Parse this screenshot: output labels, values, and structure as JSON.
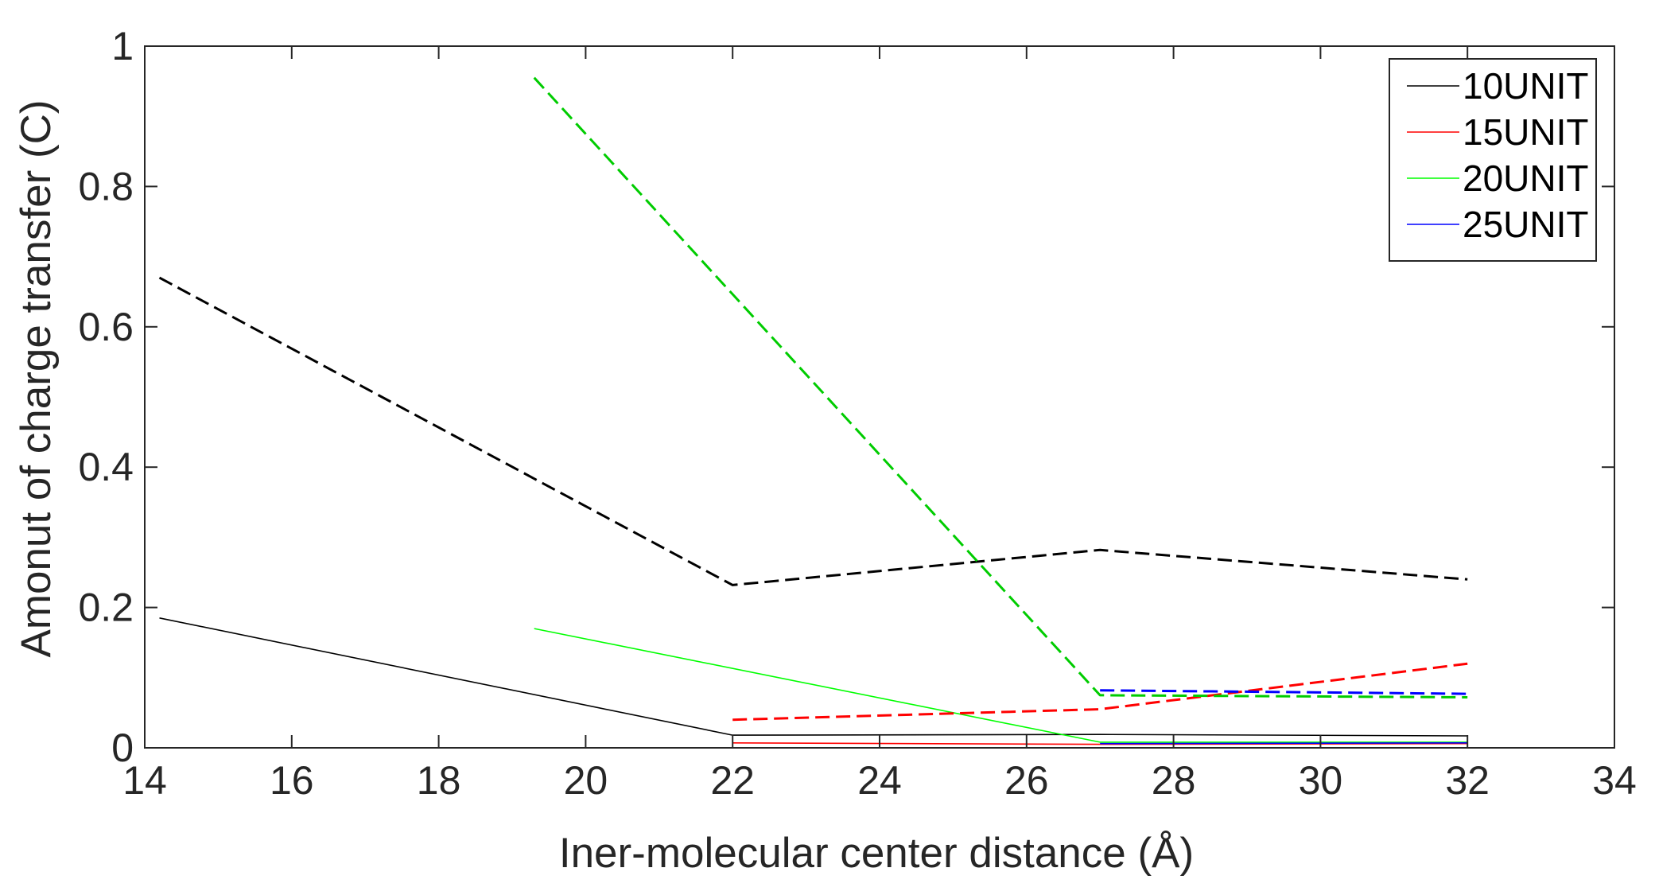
{
  "chart_data": {
    "type": "line",
    "title": "",
    "xlabel": "Iner-molecular center distance (Å)",
    "ylabel": "Amonut of charge transfer (C)",
    "xlim": [
      14,
      34
    ],
    "ylim": [
      0,
      1
    ],
    "xticks": [
      "14",
      "16",
      "18",
      "20",
      "22",
      "24",
      "26",
      "28",
      "30",
      "32",
      "34"
    ],
    "yticks": [
      "0",
      "0.2",
      "0.4",
      "0.6",
      "0.8",
      "1"
    ],
    "grid": false,
    "legend_position": "top-right",
    "series": [
      {
        "name": "10UNIT",
        "color": "#000000",
        "style": "solid",
        "x": [
          14.2,
          22,
          27,
          32
        ],
        "y": [
          0.185,
          0.018,
          0.019,
          0.017
        ]
      },
      {
        "name": "15UNIT",
        "color": "#ff0000",
        "style": "solid",
        "x": [
          22,
          27,
          32
        ],
        "y": [
          0.007,
          0.005,
          0.006
        ]
      },
      {
        "name": "20UNIT",
        "color": "#00ff00",
        "style": "solid",
        "x": [
          19.3,
          27,
          32
        ],
        "y": [
          0.17,
          0.008,
          0.008
        ]
      },
      {
        "name": "25UNIT",
        "color": "#0000ff",
        "style": "solid",
        "x": [
          27,
          32
        ],
        "y": [
          0.006,
          0.007
        ]
      },
      {
        "name": "",
        "color": "#000000",
        "style": "dashed",
        "x": [
          14.2,
          22,
          27,
          32
        ],
        "y": [
          0.67,
          0.232,
          0.282,
          0.24
        ]
      },
      {
        "name": "",
        "color": "#ff0000",
        "style": "dashed",
        "x": [
          22,
          27,
          32
        ],
        "y": [
          0.04,
          0.055,
          0.12
        ]
      },
      {
        "name": "",
        "color": "#00cc00",
        "style": "dashed",
        "x": [
          19.3,
          27,
          32
        ],
        "y": [
          0.955,
          0.075,
          0.072
        ]
      },
      {
        "name": "",
        "color": "#0000ff",
        "style": "dashed",
        "x": [
          27,
          32
        ],
        "y": [
          0.082,
          0.077
        ]
      }
    ],
    "legend": [
      "10UNIT",
      "15UNIT",
      "20UNIT",
      "25UNIT"
    ]
  }
}
